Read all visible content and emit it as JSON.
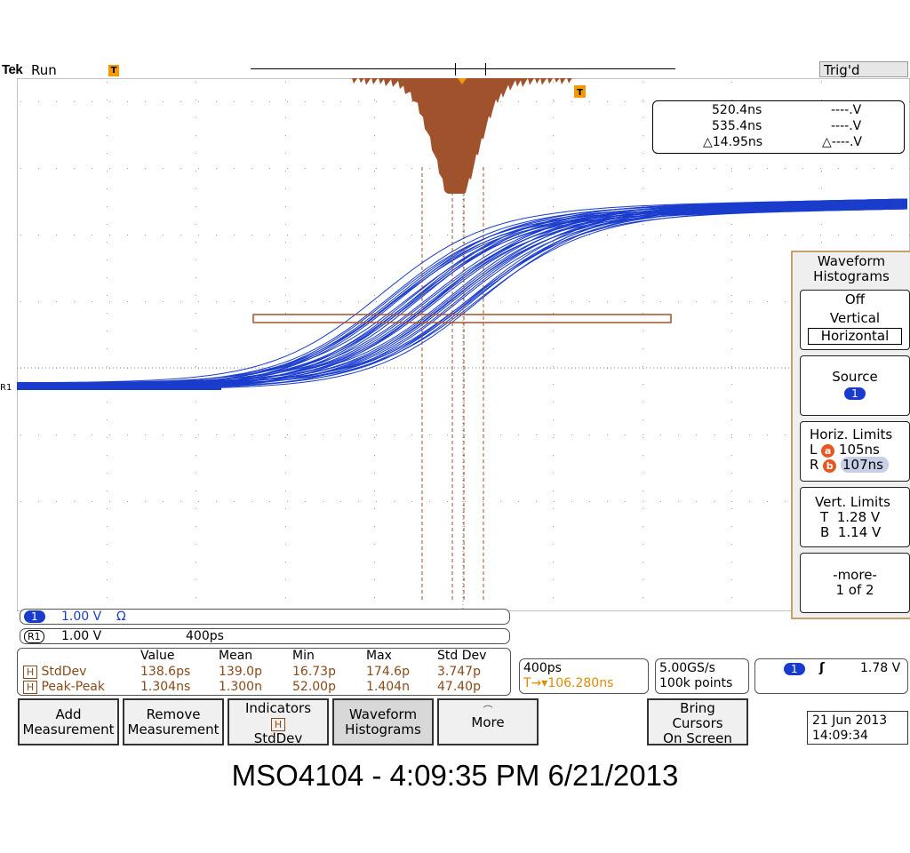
{
  "header": {
    "brand": "Tek",
    "acq_state": "Run",
    "trigger_marker": "T",
    "trig_status": "Trig'd"
  },
  "cursor_readout": {
    "a_time": "520.4ns",
    "a_volt": "----.V",
    "b_time": "535.4ns",
    "b_volt": "----.V",
    "delta_time": "△14.95ns",
    "delta_volt": "△----.V"
  },
  "menu": {
    "title_line1": "Waveform",
    "title_line2": "Histograms",
    "mode_off": "Off",
    "mode_vertical": "Vertical",
    "mode_horizontal": "Horizontal",
    "source_label": "Source",
    "source_value": "1",
    "horiz_limits_label": "Horiz. Limits",
    "horiz_l_label": "L",
    "horiz_l_badge": "a",
    "horiz_l_value": "105ns",
    "horiz_r_label": "R",
    "horiz_r_badge": "b",
    "horiz_r_value": "107ns",
    "vert_limits_label": "Vert. Limits",
    "vert_t_label": "T",
    "vert_t_value": "1.28 V",
    "vert_b_label": "B",
    "vert_b_value": "1.14 V",
    "more_label": "-more-",
    "more_page": "1 of 2"
  },
  "channels": {
    "ch1_badge": "1",
    "ch1_scale": "1.00 V",
    "ch1_coupling": "Ω",
    "r1_badge": "R1",
    "r1_scale": "1.00 V",
    "r1_timebase": "400ps",
    "ground_marker": "R1"
  },
  "measurements": {
    "headers": [
      "Value",
      "Mean",
      "Min",
      "Max",
      "Std Dev"
    ],
    "rows": [
      {
        "badge": "H",
        "name": "StdDev",
        "values": [
          "138.6ps",
          "139.0p",
          "16.73p",
          "174.6p",
          "3.747p"
        ]
      },
      {
        "badge": "H",
        "name": "Peak-Peak",
        "values": [
          "1.304ns",
          "1.300n",
          "52.00p",
          "1.404n",
          "47.40p"
        ]
      }
    ]
  },
  "horizontal": {
    "scale": "400ps",
    "position": "106.280ns",
    "position_prefix": "T→▾",
    "sample_rate": "5.00GS/s",
    "record_length": "100k points"
  },
  "trigger": {
    "source": "1",
    "slope": "ʃ",
    "level": "1.78 V"
  },
  "buttons": {
    "add_measurement_1": "Add",
    "add_measurement_2": "Measurement",
    "remove_measurement_1": "Remove",
    "remove_measurement_2": "Measurement",
    "indicators_1": "Indicators",
    "indicators_badge": "H",
    "indicators_2": "StdDev",
    "waveform_histograms_1": "Waveform",
    "waveform_histograms_2": "Histograms",
    "more": "More",
    "bring_cursors_1": "Bring",
    "bring_cursors_2": "Cursors",
    "bring_cursors_3": "On Screen"
  },
  "datetime": {
    "date": "21 Jun  2013",
    "time": "14:09:34"
  },
  "caption": "MSO4104 - 4:09:35 PM   6/21/2013",
  "colors": {
    "trace": "#1a3ccc",
    "histogram": "#a0522d",
    "accent": "#f29a00"
  }
}
